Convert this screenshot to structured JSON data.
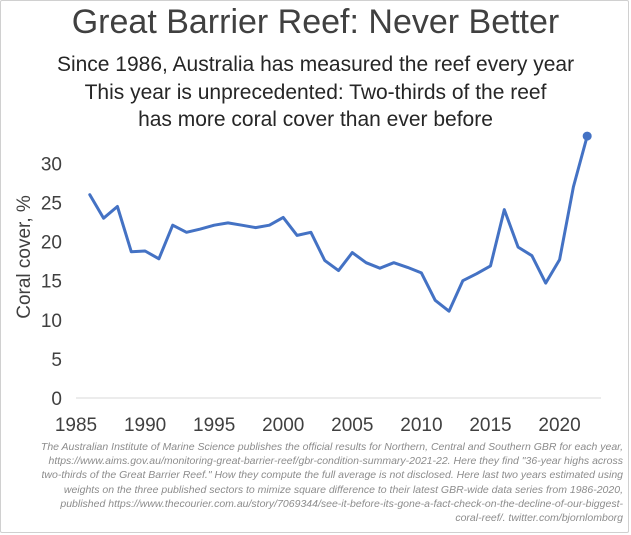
{
  "chart_data": {
    "type": "line",
    "title": "Great Barrier Reef: Never Better",
    "subtitle_lines": [
      "Since 1986, Australia has measured the reef every year",
      "This year is unprecedented: Two-thirds of the reef",
      "has more coral cover than ever before"
    ],
    "xlabel": "",
    "ylabel": "Coral cover, %",
    "xlim": [
      1985,
      2023
    ],
    "ylim": [
      0,
      33
    ],
    "x_ticks": [
      "1985",
      "1990",
      "1995",
      "2000",
      "2005",
      "2010",
      "2015",
      "2020"
    ],
    "y_ticks": [
      "0",
      "5",
      "10",
      "15",
      "20",
      "25",
      "30"
    ],
    "grid": false,
    "line_color": "#4472C4",
    "x": [
      1986,
      1987,
      1988,
      1989,
      1990,
      1991,
      1992,
      1993,
      1994,
      1995,
      1996,
      1997,
      1998,
      1999,
      2000,
      2001,
      2002,
      2003,
      2004,
      2005,
      2006,
      2007,
      2008,
      2009,
      2010,
      2011,
      2012,
      2013,
      2014,
      2015,
      2016,
      2017,
      2018,
      2019,
      2020,
      2021,
      2022
    ],
    "values": [
      26.0,
      23.0,
      24.5,
      18.7,
      18.8,
      17.8,
      22.1,
      21.2,
      21.6,
      22.1,
      22.4,
      22.1,
      21.8,
      22.1,
      23.1,
      20.8,
      21.2,
      17.6,
      16.3,
      18.6,
      17.3,
      16.6,
      17.3,
      16.7,
      16.0,
      12.5,
      11.1,
      15.0,
      15.9,
      16.9,
      24.1,
      19.3,
      18.2,
      14.7,
      17.7,
      27.0,
      33.5
    ],
    "highlight_last_point": true
  },
  "footnote_lines": [
    "The Australian Institute of Marine Science publishes the official results for Northern, Central and Southern GBR for each year,",
    "https://www.aims.gov.au/monitoring-great-barrier-reef/gbr-condition-summary-2021-22. Here they find \"36-year highs across",
    "two-thirds of the Great Barrier Reef.\" How they compute the full average is not disclosed. Here last two years estimated using",
    "weights on the three published sectors to mimize square difference to their latest GBR-wide data series from 1986-2020,",
    "published https://www.thecourier.com.au/story/7069344/see-it-before-its-gone-a-fact-check-on-the-decline-of-our-biggest-",
    "coral-reef/. twitter.com/bjornlomborg"
  ]
}
